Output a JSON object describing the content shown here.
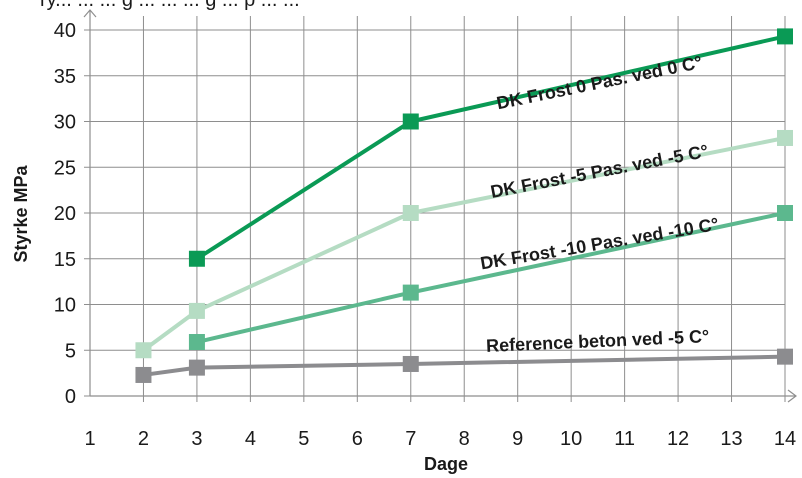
{
  "chart_data": {
    "type": "line",
    "title": "ry... ... ... g ... ... ... g ... p ... ...",
    "xlabel": "Dage",
    "ylabel": "Styrke MPa",
    "xlim": [
      1,
      14
    ],
    "ylim": [
      0,
      40
    ],
    "x_ticks": [
      1,
      2,
      3,
      4,
      5,
      6,
      7,
      8,
      9,
      10,
      11,
      12,
      13,
      14
    ],
    "y_ticks": [
      0,
      5,
      10,
      15,
      20,
      25,
      30,
      35,
      40
    ],
    "grid": true,
    "series": [
      {
        "name": "DK Frost 0 Pas. ved 0 C°",
        "color": "#0a9a55",
        "points": [
          [
            3,
            15
          ],
          [
            7,
            30
          ],
          [
            14,
            39.3
          ]
        ]
      },
      {
        "name": "DK Frost -5 Pas. ved -5 C°",
        "color": "#b5dcc3",
        "points": [
          [
            2,
            5
          ],
          [
            3,
            9.3
          ],
          [
            7,
            20
          ],
          [
            14,
            28.2
          ]
        ]
      },
      {
        "name": "DK Frost -10 Pas. ved -10 C°",
        "color": "#5cb88e",
        "points": [
          [
            3,
            5.9
          ],
          [
            7,
            11.3
          ],
          [
            14,
            20
          ]
        ]
      },
      {
        "name": "Reference beton ved -5 C°",
        "color": "#8c8c8f",
        "points": [
          [
            2,
            2.3
          ],
          [
            3,
            3.1
          ],
          [
            7,
            3.5
          ],
          [
            14,
            4.3
          ]
        ]
      }
    ]
  }
}
